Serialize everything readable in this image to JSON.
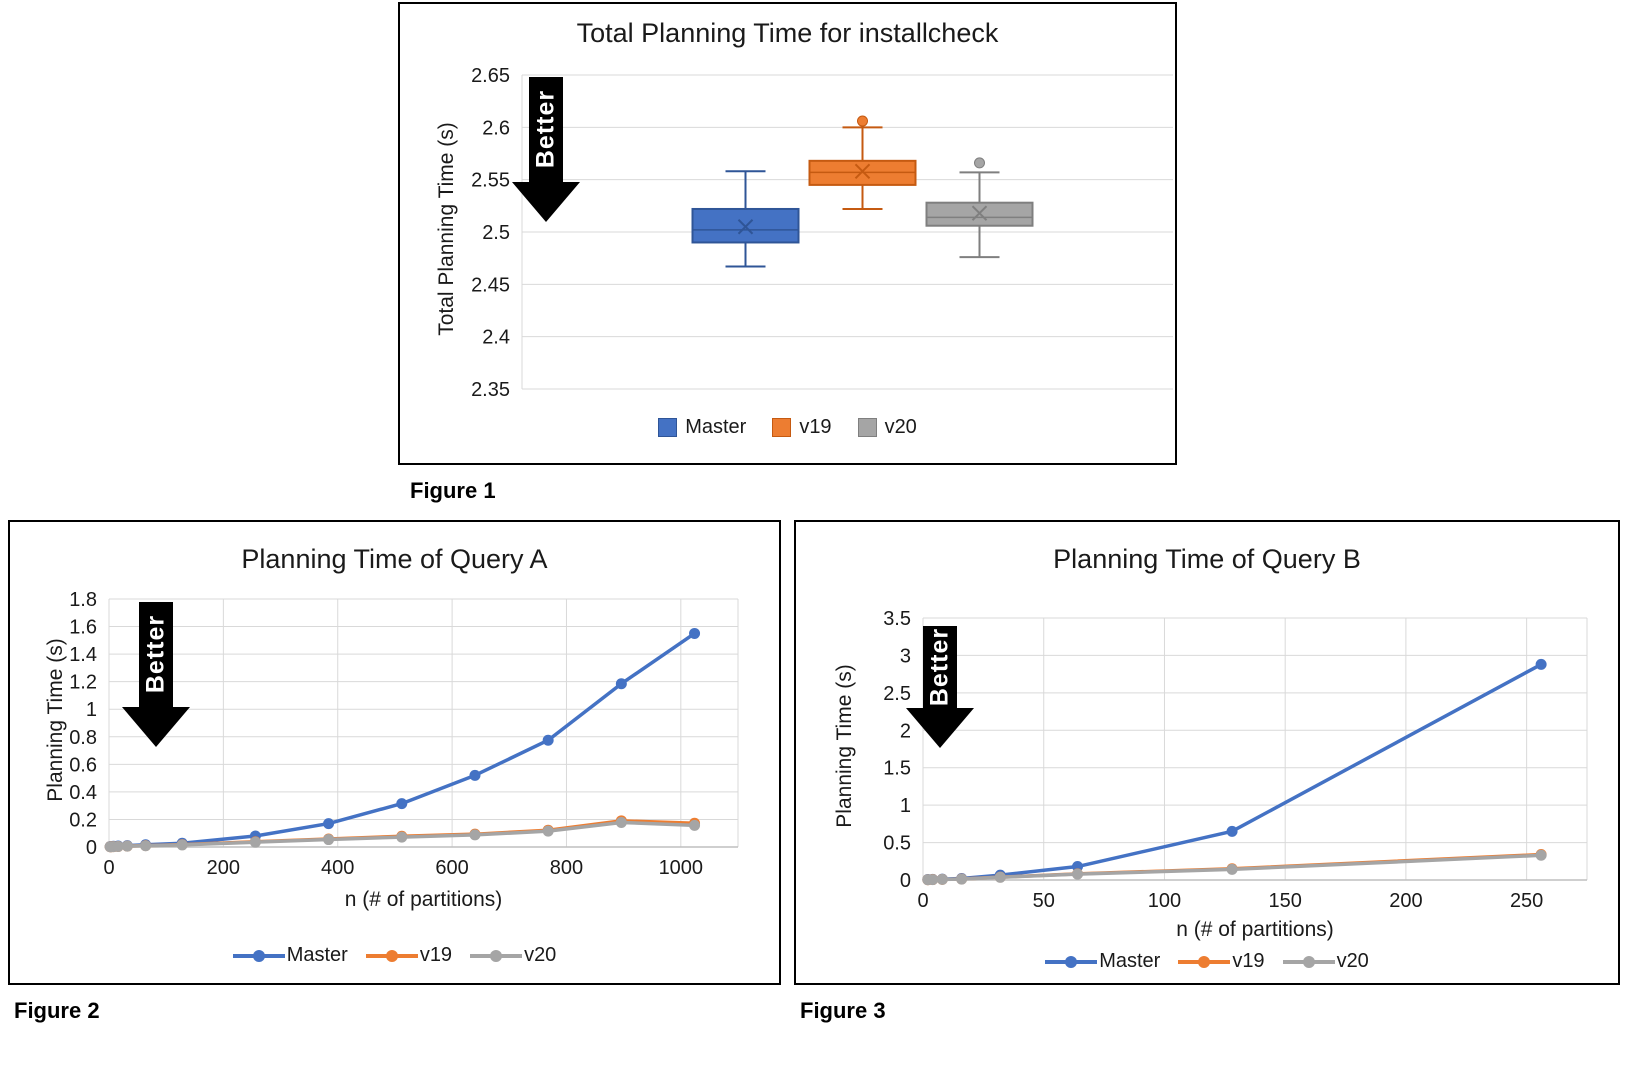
{
  "page": {
    "background": "#ffffff"
  },
  "chart_data": [
    {
      "type": "box",
      "caption": "Figure 1",
      "title": "Total Planning Time for installcheck",
      "ylabel": "Total Planning Time (s)",
      "better_label": "Better",
      "ylim": [
        2.35,
        2.65
      ],
      "yticks": [
        2.65,
        2.6,
        2.55,
        2.5,
        2.45,
        2.4,
        2.35
      ],
      "grid_color": "#d9d9d9",
      "grid": true,
      "legend_position": "bottom",
      "series": [
        {
          "name": "Master",
          "color": "#4472c4",
          "border": "#2f5597",
          "whisker_low": 2.467,
          "q1": 2.49,
          "median": 2.502,
          "q3": 2.522,
          "whisker_high": 2.558,
          "mean": 2.505,
          "outliers": []
        },
        {
          "name": "v19",
          "color": "#ed7d31",
          "border": "#c55a11",
          "whisker_low": 2.522,
          "q1": 2.545,
          "median": 2.557,
          "q3": 2.568,
          "whisker_high": 2.6,
          "mean": 2.558,
          "outliers": [
            2.606
          ]
        },
        {
          "name": "v20",
          "color": "#a5a5a5",
          "border": "#7f7f7f",
          "whisker_low": 2.476,
          "q1": 2.506,
          "median": 2.514,
          "q3": 2.528,
          "whisker_high": 2.557,
          "mean": 2.518,
          "outliers": [
            2.566
          ]
        }
      ]
    },
    {
      "type": "line",
      "caption": "Figure 2",
      "title": "Planning Time of Query A",
      "xlabel": "n (# of partitions)",
      "ylabel": "Planning Time (s)",
      "better_label": "Better",
      "xlim": [
        0,
        1100
      ],
      "ylim": [
        0,
        1.8
      ],
      "xticks": [
        0,
        200,
        400,
        600,
        800,
        1000
      ],
      "yticks": [
        1.8,
        1.6,
        1.4,
        1.2,
        1,
        0.8,
        0.6,
        0.4,
        0.2,
        0
      ],
      "grid_color": "#d9d9d9",
      "axis_color": "#bfbfbf",
      "grid": true,
      "legend_position": "bottom",
      "series": [
        {
          "name": "Master",
          "color": "#4472c4",
          "points": [
            [
              2,
              0.003
            ],
            [
              4,
              0.004
            ],
            [
              8,
              0.005
            ],
            [
              16,
              0.007
            ],
            [
              32,
              0.01
            ],
            [
              64,
              0.016
            ],
            [
              128,
              0.027
            ],
            [
              256,
              0.08
            ],
            [
              384,
              0.17
            ],
            [
              512,
              0.315
            ],
            [
              640,
              0.52
            ],
            [
              768,
              0.775
            ],
            [
              896,
              1.185
            ],
            [
              1024,
              1.55
            ]
          ]
        },
        {
          "name": "v19",
          "color": "#ed7d31",
          "points": [
            [
              2,
              0.002
            ],
            [
              4,
              0.002
            ],
            [
              8,
              0.003
            ],
            [
              16,
              0.004
            ],
            [
              32,
              0.006
            ],
            [
              64,
              0.01
            ],
            [
              128,
              0.017
            ],
            [
              256,
              0.038
            ],
            [
              384,
              0.058
            ],
            [
              512,
              0.078
            ],
            [
              640,
              0.093
            ],
            [
              768,
              0.122
            ],
            [
              896,
              0.19
            ],
            [
              1024,
              0.172
            ]
          ]
        },
        {
          "name": "v20",
          "color": "#a5a5a5",
          "points": [
            [
              2,
              0.002
            ],
            [
              4,
              0.002
            ],
            [
              8,
              0.003
            ],
            [
              16,
              0.004
            ],
            [
              32,
              0.006
            ],
            [
              64,
              0.009
            ],
            [
              128,
              0.015
            ],
            [
              256,
              0.035
            ],
            [
              384,
              0.054
            ],
            [
              512,
              0.072
            ],
            [
              640,
              0.088
            ],
            [
              768,
              0.115
            ],
            [
              896,
              0.178
            ],
            [
              1024,
              0.157
            ]
          ]
        }
      ]
    },
    {
      "type": "line",
      "caption": "Figure 3",
      "title": "Planning Time of Query B",
      "xlabel": "n (# of partitions)",
      "ylabel": "Planning Time (s)",
      "better_label": "Better",
      "xlim": [
        0,
        275
      ],
      "ylim": [
        0,
        3.5
      ],
      "xticks": [
        0,
        50,
        100,
        150,
        200,
        250
      ],
      "yticks": [
        3.5,
        3,
        2.5,
        2,
        1.5,
        1,
        0.5,
        0
      ],
      "grid_color": "#d9d9d9",
      "axis_color": "#bfbfbf",
      "grid": true,
      "legend_position": "bottom",
      "series": [
        {
          "name": "Master",
          "color": "#4472c4",
          "points": [
            [
              2,
              0.006
            ],
            [
              4,
              0.008
            ],
            [
              8,
              0.012
            ],
            [
              16,
              0.02
            ],
            [
              32,
              0.065
            ],
            [
              64,
              0.18
            ],
            [
              128,
              0.65
            ],
            [
              256,
              2.88
            ]
          ]
        },
        {
          "name": "v19",
          "color": "#ed7d31",
          "points": [
            [
              2,
              0.004
            ],
            [
              4,
              0.006
            ],
            [
              8,
              0.008
            ],
            [
              16,
              0.013
            ],
            [
              32,
              0.038
            ],
            [
              64,
              0.082
            ],
            [
              128,
              0.15
            ],
            [
              256,
              0.34
            ]
          ]
        },
        {
          "name": "v20",
          "color": "#a5a5a5",
          "points": [
            [
              2,
              0.004
            ],
            [
              4,
              0.005
            ],
            [
              8,
              0.008
            ],
            [
              16,
              0.012
            ],
            [
              32,
              0.036
            ],
            [
              64,
              0.078
            ],
            [
              128,
              0.142
            ],
            [
              256,
              0.33
            ]
          ]
        }
      ]
    }
  ]
}
